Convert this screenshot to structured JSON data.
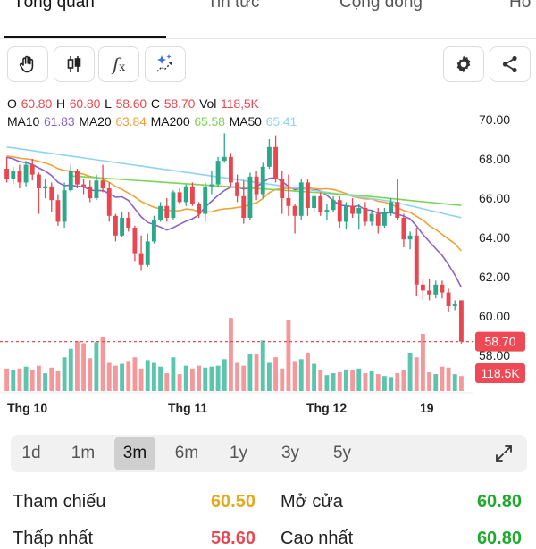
{
  "tabs": [
    {
      "label": "Tổng quan",
      "active": true
    },
    {
      "label": "Tin tức",
      "active": false
    },
    {
      "label": "Cộng đồng",
      "active": false
    },
    {
      "label": "Ho",
      "active": false
    }
  ],
  "toolbar": {
    "icons": [
      "hand-icon",
      "candlestick-icon",
      "function-icon",
      "ai-sparkle-icon",
      "gear-icon",
      "share-icon"
    ],
    "fx_label": "f",
    "fx_sub": "x"
  },
  "legend": {
    "o_label": "O",
    "o_value": "60.80",
    "h_label": "H",
    "h_value": "60.80",
    "l_label": "L",
    "l_value": "58.60",
    "c_label": "C",
    "c_value": "58.70",
    "vol_label": "Vol",
    "vol_value": "118,5K",
    "ma10_label": "MA10",
    "ma10_value": "61.83",
    "ma20_label": "MA20",
    "ma20_value": "63.84",
    "ma200_label": "MA200",
    "ma200_value": "65.58",
    "ma50_label": "MA50",
    "ma50_value": "65.41"
  },
  "colors": {
    "up": "#2aa889",
    "down": "#e8474f",
    "vol_up": "#5cc5ad",
    "vol_down": "#f4989c",
    "ma10": "#8a62c8",
    "ma20": "#f1a23a",
    "ma200": "#7ed354",
    "ma50": "#8fd3f0",
    "price_tag": "#ee4a55"
  },
  "chart_data": {
    "type": "candlestick",
    "y_ticks": [
      "70.00",
      "68.00",
      "66.00",
      "64.00",
      "62.00",
      "60.00",
      "58.00"
    ],
    "ylim": [
      57.0,
      71.0
    ],
    "x_ticks": [
      "Thg 10",
      "Thg 11",
      "Thg 12",
      "19"
    ],
    "last_price_label": "58.70",
    "last_volume_label": "118.5K",
    "last_close": 58.7,
    "candles": [
      [
        67.5,
        68.1,
        66.8,
        67.0
      ],
      [
        67.0,
        67.6,
        66.7,
        67.4
      ],
      [
        67.4,
        67.7,
        66.5,
        66.8
      ],
      [
        66.8,
        67.9,
        66.6,
        67.7
      ],
      [
        67.7,
        68.0,
        66.9,
        67.2
      ],
      [
        67.2,
        67.3,
        65.2,
        66.5
      ],
      [
        66.5,
        67.0,
        66.0,
        66.6
      ],
      [
        66.6,
        66.8,
        65.3,
        65.9
      ],
      [
        65.9,
        66.2,
        64.6,
        64.8
      ],
      [
        64.8,
        66.8,
        64.5,
        66.4
      ],
      [
        66.4,
        67.7,
        66.3,
        67.4
      ],
      [
        67.4,
        67.5,
        66.5,
        66.7
      ],
      [
        66.7,
        67.0,
        66.2,
        66.6
      ],
      [
        66.6,
        66.9,
        65.8,
        66.0
      ],
      [
        66.0,
        67.2,
        65.9,
        66.9
      ],
      [
        66.9,
        67.7,
        66.3,
        66.5
      ],
      [
        66.5,
        66.8,
        64.8,
        65.1
      ],
      [
        65.1,
        65.2,
        63.8,
        64.1
      ],
      [
        64.1,
        65.3,
        64.0,
        65.0
      ],
      [
        65.0,
        65.3,
        64.3,
        64.5
      ],
      [
        64.5,
        64.6,
        62.8,
        63.2
      ],
      [
        63.2,
        64.1,
        62.3,
        62.6
      ],
      [
        62.6,
        64.2,
        62.5,
        63.8
      ],
      [
        63.8,
        65.1,
        63.7,
        64.9
      ],
      [
        64.9,
        65.8,
        64.8,
        65.6
      ],
      [
        65.6,
        66.0,
        64.8,
        65.0
      ],
      [
        65.0,
        66.4,
        64.9,
        66.3
      ],
      [
        66.3,
        66.5,
        65.7,
        65.8
      ],
      [
        65.8,
        66.7,
        65.6,
        66.6
      ],
      [
        66.6,
        66.8,
        65.6,
        65.7
      ],
      [
        65.7,
        65.8,
        65.0,
        65.2
      ],
      [
        65.2,
        66.8,
        64.8,
        66.6
      ],
      [
        66.6,
        67.4,
        66.2,
        66.7
      ],
      [
        66.7,
        68.1,
        66.6,
        67.9
      ],
      [
        67.9,
        69.3,
        67.8,
        68.1
      ],
      [
        68.1,
        68.3,
        66.6,
        66.8
      ],
      [
        66.8,
        67.2,
        65.8,
        66.1
      ],
      [
        66.1,
        66.9,
        64.7,
        65.0
      ],
      [
        65.0,
        67.3,
        64.9,
        67.1
      ],
      [
        67.1,
        67.4,
        65.9,
        66.2
      ],
      [
        66.2,
        67.8,
        66.0,
        67.6
      ],
      [
        67.6,
        69.0,
        67.5,
        68.6
      ],
      [
        68.6,
        69.2,
        66.8,
        67.0
      ],
      [
        67.0,
        67.4,
        65.2,
        66.0
      ],
      [
        66.0,
        67.2,
        65.1,
        65.6
      ],
      [
        65.6,
        65.7,
        64.2,
        65.1
      ],
      [
        65.1,
        67.0,
        64.9,
        66.8
      ],
      [
        66.8,
        67.0,
        65.1,
        65.5
      ],
      [
        65.5,
        66.2,
        65.3,
        66.1
      ],
      [
        66.1,
        66.3,
        65.1,
        65.3
      ],
      [
        65.3,
        65.7,
        64.9,
        65.4
      ],
      [
        65.4,
        66.1,
        65.3,
        65.9
      ],
      [
        65.9,
        66.1,
        64.5,
        64.8
      ],
      [
        64.8,
        65.8,
        64.4,
        65.6
      ],
      [
        65.6,
        66.0,
        65.0,
        65.2
      ],
      [
        65.2,
        65.7,
        64.4,
        65.5
      ],
      [
        65.5,
        65.8,
        64.6,
        64.8
      ],
      [
        64.8,
        65.4,
        64.6,
        65.2
      ],
      [
        65.2,
        65.5,
        64.2,
        64.6
      ],
      [
        64.6,
        65.5,
        64.5,
        65.3
      ],
      [
        65.3,
        66.0,
        65.1,
        65.8
      ],
      [
        65.8,
        67.0,
        64.9,
        65.0
      ],
      [
        65.0,
        65.2,
        63.5,
        63.9
      ],
      [
        63.9,
        64.3,
        63.4,
        64.1
      ],
      [
        64.1,
        64.5,
        61.0,
        61.6
      ],
      [
        61.6,
        61.9,
        60.8,
        61.3
      ],
      [
        61.3,
        61.9,
        60.8,
        61.1
      ],
      [
        61.1,
        61.8,
        60.9,
        61.6
      ],
      [
        61.6,
        61.8,
        60.9,
        61.2
      ],
      [
        61.2,
        61.4,
        60.2,
        60.5
      ],
      [
        60.5,
        60.8,
        60.3,
        60.6
      ],
      [
        60.8,
        60.8,
        58.6,
        58.7
      ]
    ],
    "volumes": [
      0.24,
      0.22,
      0.24,
      0.26,
      0.23,
      0.27,
      0.19,
      0.25,
      0.21,
      0.36,
      0.45,
      0.53,
      0.51,
      0.35,
      0.52,
      0.58,
      0.3,
      0.27,
      0.29,
      0.32,
      0.36,
      0.24,
      0.33,
      0.3,
      0.26,
      0.19,
      0.36,
      0.18,
      0.27,
      0.24,
      0.27,
      0.25,
      0.26,
      0.27,
      0.34,
      0.78,
      0.3,
      0.27,
      0.4,
      0.39,
      0.54,
      0.3,
      0.36,
      0.24,
      0.76,
      0.32,
      0.34,
      0.41,
      0.29,
      0.22,
      0.17,
      0.19,
      0.2,
      0.23,
      0.22,
      0.24,
      0.19,
      0.21,
      0.18,
      0.16,
      0.15,
      0.19,
      0.22,
      0.41,
      0.36,
      0.61,
      0.2,
      0.18,
      0.26,
      0.25,
      0.18,
      0.16
    ]
  },
  "ranges": [
    {
      "label": "1d",
      "active": false
    },
    {
      "label": "1m",
      "active": false
    },
    {
      "label": "3m",
      "active": true
    },
    {
      "label": "6m",
      "active": false
    },
    {
      "label": "1y",
      "active": false
    },
    {
      "label": "3y",
      "active": false
    },
    {
      "label": "5y",
      "active": false
    }
  ],
  "stats": {
    "ref_label": "Tham chiếu",
    "ref_value": "60.50",
    "ref_color": "#e5a81c",
    "open_label": "Mở cửa",
    "open_value": "60.80",
    "open_color": "#1faa2e",
    "low_label": "Thấp nhất",
    "low_value": "58.60",
    "low_color": "#e8474f",
    "high_label": "Cao nhất",
    "high_value": "60.80",
    "high_color": "#1faa2e"
  }
}
